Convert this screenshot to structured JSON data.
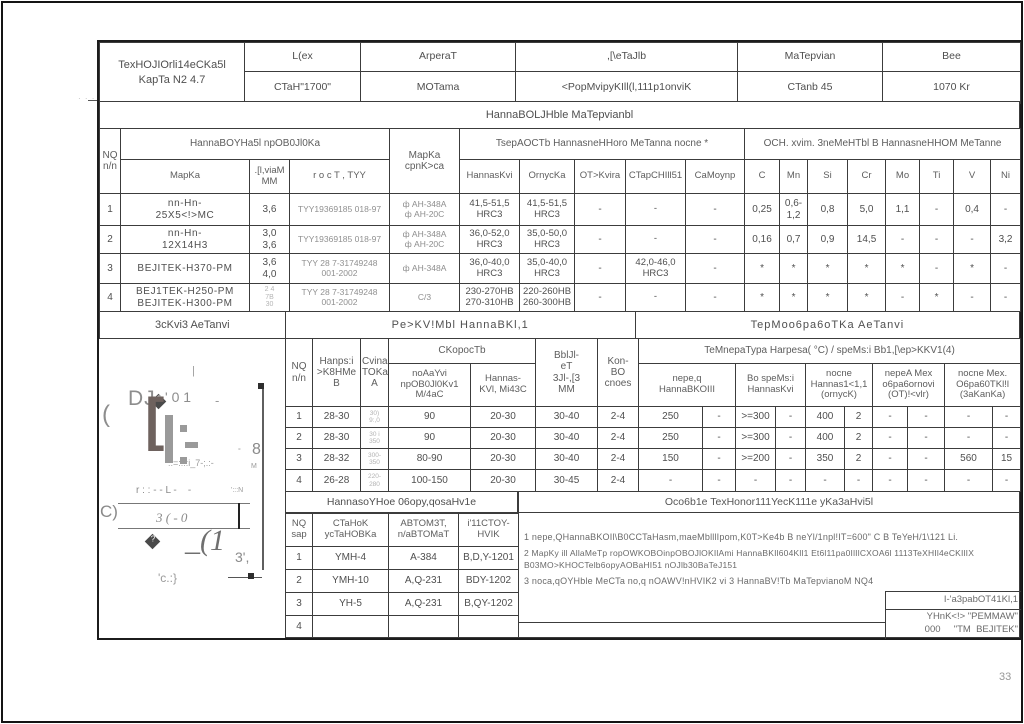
{
  "page": {
    "number": "33",
    "dots": "· · · ·"
  },
  "header": {
    "card_title": "TexHOJIOrli14eCKa5l\nKapTa N2 4.7",
    "cols": [
      {
        "label": "L(ex",
        "value": "CTaH\"1700\""
      },
      {
        "label": "ArperaT",
        "value": "MOTama"
      },
      {
        "label": ",[\\eTaJlb",
        "value": "<PopMvipyKIll(l,111p1onviK"
      },
      {
        "label": "MaTepvian",
        "value": "CTanb 45"
      },
      {
        "label": "Bee",
        "value": "1070 Kr"
      }
    ]
  },
  "band_materials": "HannaBOLJHble MaTepvianbl",
  "materials": {
    "h_no": "NQ\nn/n",
    "h_group": "HannaBOYHa5l npOB0Jl0Ka",
    "h_marka": "MapKa",
    "h_diam": ".[l,viaM\nMM",
    "h_gost": "r o c T ,  TYY",
    "h_flux": "MapKa\ncpnK>ca",
    "h_hardness": "TsepAOCTb HannasneHHoro  MeTanna  nocne  *",
    "h_hard_sub": [
      "HannasKvi",
      "OrnycKa",
      "OT>Kvira",
      "CTapCHIll51",
      "CaMoynp"
    ],
    "h_chem": "OCH. xvim. 3neMeHTbl B HannasneHHOM MeTanne",
    "h_chem_sub": [
      "C",
      "Mn",
      "Si",
      "Cr",
      "Mo",
      "Ti",
      "V",
      "Ni"
    ],
    "rows": [
      [
        "1",
        "nn-Hn-\n25X5<!>MC",
        "3,6",
        "TYY19369185 018-97",
        "ф AH-348A\nф AH-20C",
        "41,5-51,5\nHRC3",
        "41,5-51,5\nHRC3",
        "-",
        "-",
        "-",
        "0,25",
        "0,6-\n1,2",
        "0,8",
        "5,0",
        "1,1",
        "-",
        "0,4",
        "-"
      ],
      [
        "2",
        "nn-Hn-\n12X14H3",
        "3,0\n3,6",
        "TYY19369185 018-97",
        "ф AH-348A\nф AH-20C",
        "36,0-52,0\nHRC3",
        "35,0-50,0\nHRC3",
        "-",
        "-",
        "-",
        "0,16",
        "0,7",
        "0,9",
        "14,5",
        "-",
        "-",
        "-",
        "3,2"
      ],
      [
        "3",
        "BEJITEK-H370-PM",
        "3,6\n4,0",
        "TYY 28 7-31749248\n001-2002",
        "ф AH-348A",
        "36,0-40,0\nHRC3",
        "35,0-40,0\nHRC3",
        "-",
        "42,0-46,0\nHRC3",
        "-",
        "*",
        "*",
        "*",
        "*",
        "*",
        "-",
        "*",
        "-"
      ],
      [
        "4",
        "BEJ1TEK-H250-PM\nBEJITEK-H300-PM",
        "2 4\n7B\n30",
        "TYY 28 7-31749248\n001-2002",
        "C/3",
        "230-270HB\n270-310HB",
        "220-260HB\n260-300HB",
        "-",
        "-",
        "-",
        "*",
        "*",
        "*",
        "*",
        "-",
        "*",
        "-",
        "-"
      ]
    ]
  },
  "band_sketch": "3cKvi3 AeTanvi",
  "band_regimes": "Pe>KV!Mbl HannaBKl,1",
  "band_thermo": "TepMoo6pa6oTKa  AeTanvi",
  "regimes": {
    "h_no": "NQ\nn/n",
    "h_voltage": "Hanps:i\n>K8HMe\nB",
    "h_current": "Cvina\nTOKa.\nA",
    "h_speed": "CKopocTb",
    "h_speed_feed": "noAaYvi\nnpOB0Jl0Kv1\nM/4aC",
    "h_speed_weld": "Hannas-\nKVl, Mi43C",
    "h_stickout": "BblJl-\neT\n3Jl-,[3\nMM",
    "h_layers": "Kon-\nBO\ncnoes",
    "h_temp": "TeMnepaTypa  Harpesa( °C)  /  speMs:i  Bb1,[\\ep>KKV1(4)",
    "h_t1": "nepe,q\nHannaBKOIII",
    "h_t2": "Bo speMs:i\nHannasKvi",
    "h_t3": "nocne\nHannas1<1,1\n(ornycK)",
    "h_t4": "nepeA  Mex\no6pa6ornovi\n(OT)!<vlr)",
    "h_t5": "nocne  Mex.\nO6pa60TKl!l\n(3aKanKa)",
    "rows": [
      [
        "1",
        "28-30",
        "30)\n9:,0",
        "90",
        "20-30",
        "30-40",
        "2-4",
        "250",
        "-",
        ">=300",
        "-",
        "400",
        "2",
        "-",
        "-",
        "-",
        "-"
      ],
      [
        "2",
        "28-30",
        "30 i\n350",
        "90",
        "20-30",
        "30-40",
        "2-4",
        "250",
        "-",
        ">=300",
        "-",
        "400",
        "2",
        "-",
        "-",
        "-",
        "-"
      ],
      [
        "3",
        "28-32",
        "300-\n350",
        "80-90",
        "20-30",
        "30-40",
        "2-4",
        "150",
        "-",
        ">=200",
        "-",
        "350",
        "2",
        "-",
        "-",
        "560",
        "15"
      ],
      [
        "4",
        "26-28",
        "220-\n280",
        "100-150",
        "20-30",
        "30-45",
        "2-4",
        "-",
        "-",
        "-",
        "-",
        "-",
        "-",
        "-",
        "-",
        "-",
        "-"
      ]
    ]
  },
  "equipment": {
    "title": "HannasoYHoe  06opy,qosaHv1e",
    "h": [
      "NQ\nsap",
      "CTaHoK\nycTaHOBKa",
      "ABTOM3T,\nn/aBTOMaT",
      "i'11CTOY-\nHVIK"
    ],
    "rows": [
      [
        "1",
        "YMH-4",
        "A-384",
        "B,D,Y-1201"
      ],
      [
        "2",
        "YMH-10",
        "A,Q-231",
        "BDY-1202"
      ],
      [
        "3",
        "YH-5",
        "A,Q-231",
        "B,QY-1202"
      ],
      [
        "4",
        "",
        "",
        ""
      ]
    ]
  },
  "notes": {
    "title": "Oco6b1e  TexHonor111YecK111e  yKa3aHvi5l",
    "lines": [
      "1 nepe,QHannaBKOIl\\B0CCTaHasm,maeMblllIpom,K0T>Ke4b B  neYl/1npl!IT=600\"  C  B  TeYeH/1\\121 Li.",
      "2 MapKy ill  AllaMeTp ropOWKOBOinpOBOJlOKIlAmi HannaBKIl604Kll1  Et6l11pa0IlIlCXOA6l  1113TeXHIl4eCKIlIX",
      "B03MO>KHOCTelb6opyAOBaHI51  nOJlb30BaTeJ151",
      "3 noca,qOYHble  MeCTa  no,q nOAWV!nHVIK2  vi 3  HannaBV!Tb MaTepvianoM NQ4"
    ]
  },
  "developers": {
    "title": "I-'a3pabOT41Kl,1",
    "org1": "YHnK<!> \"PEMMAW\"",
    "org2": "000     \"TM  BEJITEK\""
  },
  "sketch": {
    "fragments": [
      "|",
      "DJ",
      "(",
      "' 0 1",
      "-",
      "[",
      "::=::::i_7-;.:-",
      "8",
      "M",
      "r : : - - L -    -",
      "':::N",
      "C)",
      "3 ( - 0",
      "_(1",
      "'c.:}",
      "3',",
      "°"
    ]
  }
}
